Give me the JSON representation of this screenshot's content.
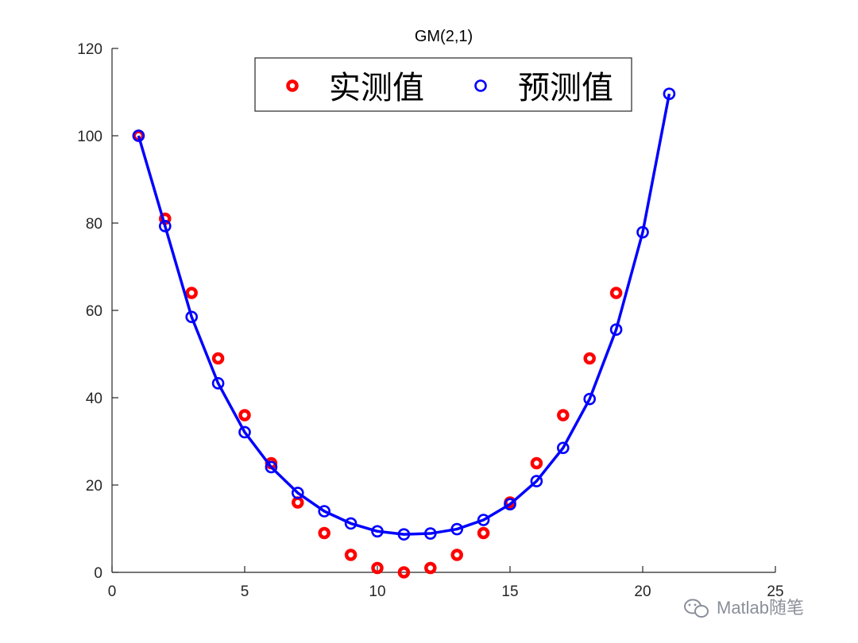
{
  "chart_data": {
    "type": "scatter",
    "title": "GM(2,1)",
    "xlabel": "",
    "ylabel": "",
    "xlim": [
      0,
      25
    ],
    "ylim": [
      0,
      120
    ],
    "xticks": [
      "0",
      "5",
      "10",
      "15",
      "20",
      "25"
    ],
    "yticks": [
      "0",
      "20",
      "40",
      "60",
      "80",
      "100",
      "120"
    ],
    "grid": false,
    "legend_position": "top",
    "series": [
      {
        "name": "实测值",
        "type": "scatter",
        "color": "#ff0000",
        "marker": "circle-thick",
        "x": [
          1,
          2,
          3,
          4,
          5,
          6,
          7,
          8,
          9,
          10,
          11,
          12,
          13,
          14,
          15,
          16,
          17,
          18,
          19
        ],
        "values": [
          100,
          81,
          64,
          49,
          36,
          25,
          16,
          9,
          4,
          1,
          0,
          1,
          4,
          9,
          16,
          25,
          36,
          49,
          64
        ]
      },
      {
        "name": "预测值",
        "type": "line+scatter",
        "color": "#0000ff",
        "marker": "circle",
        "x": [
          1,
          2,
          3,
          4,
          5,
          6,
          7,
          8,
          9,
          10,
          11,
          12,
          13,
          14,
          15,
          16,
          17,
          18,
          19,
          20,
          21
        ],
        "values": [
          100,
          79.3,
          58.5,
          43.3,
          32.1,
          24.1,
          18.2,
          14.0,
          11.2,
          9.4,
          8.7,
          8.9,
          9.9,
          12.0,
          15.6,
          20.9,
          28.5,
          39.7,
          55.6,
          77.9,
          109.6
        ]
      }
    ]
  },
  "watermark": {
    "text": "Matlab随笔",
    "icon": "wechat-icon"
  }
}
